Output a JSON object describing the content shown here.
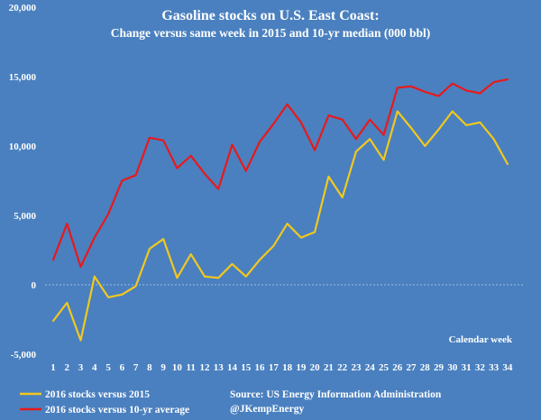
{
  "chart_data": {
    "type": "line",
    "title": "Gasoline stocks on U.S. East Coast:",
    "subtitle": "Change versus same week in 2015 and 10-yr median (000 bbl)",
    "xlabel": "Calendar week",
    "ylabel": "",
    "x": [
      1,
      2,
      3,
      4,
      5,
      6,
      7,
      8,
      9,
      10,
      11,
      12,
      13,
      14,
      15,
      16,
      17,
      18,
      19,
      20,
      21,
      22,
      23,
      24,
      25,
      26,
      27,
      28,
      29,
      30,
      31,
      32,
      33,
      34
    ],
    "ylim": [
      -5000,
      20000
    ],
    "yticks": [
      -5000,
      0,
      5000,
      10000,
      15000,
      20000
    ],
    "ytick_labels": [
      "-5,000",
      "0",
      "5,000",
      "10,000",
      "15,000",
      "20,000"
    ],
    "grid": "horizontal",
    "series": [
      {
        "name": "2016 stocks versus 2015",
        "color": "#f2c81e",
        "values": [
          -2600,
          -1300,
          -4000,
          600,
          -900,
          -700,
          -100,
          2600,
          3300,
          500,
          2200,
          600,
          500,
          1500,
          600,
          1800,
          2800,
          4400,
          3400,
          3800,
          7800,
          6300,
          9600,
          10500,
          9000,
          12500,
          11300,
          10000,
          11200,
          12500,
          11500,
          11700,
          10500,
          8700
        ]
      },
      {
        "name": "2016 stocks versus 10-yr average",
        "color": "#e8191c",
        "values": [
          1800,
          4400,
          1300,
          3400,
          5100,
          7500,
          7900,
          10600,
          10400,
          8400,
          9300,
          8000,
          6900,
          10100,
          8200,
          10300,
          11600,
          13000,
          11700,
          9700,
          12200,
          11900,
          10500,
          11900,
          10800,
          14200,
          14300,
          13900,
          13600,
          14500,
          14000,
          13800,
          14600,
          14800
        ]
      }
    ],
    "source": "Source: US Energy Information Administration",
    "credit": "@JKempEnergy",
    "legend_placement": "bottom-left"
  }
}
